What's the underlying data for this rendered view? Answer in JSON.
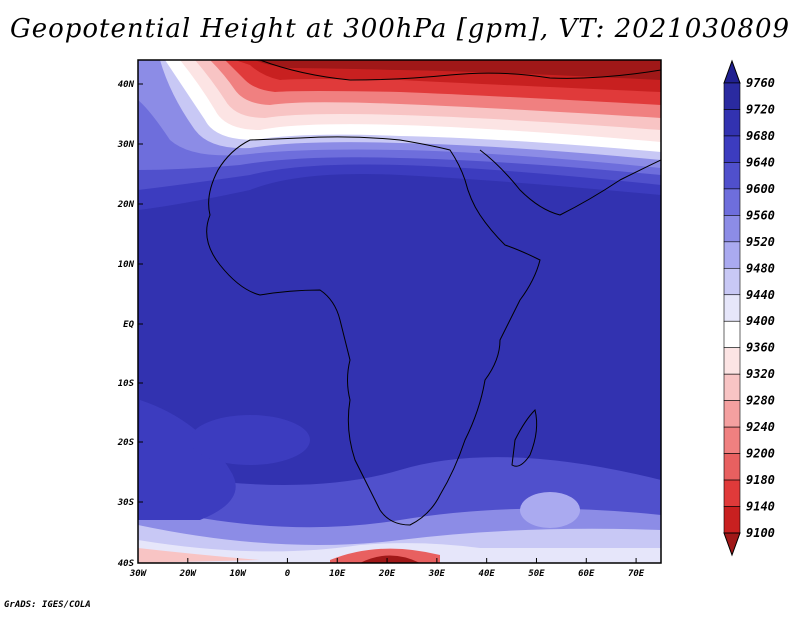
{
  "title": "Geopotential Height at 300hPa [gpm], VT: 2021030809",
  "footer": "GrADS: IGES/COLA",
  "colors": {
    "levels_low_to_high_red": [
      "#a01818",
      "#c82020",
      "#e03a3a",
      "#e86060",
      "#f08080",
      "#f4a0a0",
      "#f8c4c4",
      "#fce4e4"
    ],
    "white": "#ffffff",
    "blues_low_to_high": [
      "#e6e6fa",
      "#c8c8f5",
      "#aaaaf0",
      "#8c8ce6",
      "#6e6edc",
      "#5050cc",
      "#3c3cbf",
      "#3232b0",
      "#2a2aa0",
      "#202090"
    ]
  },
  "axes": {
    "x_ticks": [
      "30W",
      "20W",
      "10W",
      "0",
      "10E",
      "20E",
      "30E",
      "40E",
      "50E",
      "60E",
      "70E"
    ],
    "y_ticks": [
      "40N",
      "30N",
      "20N",
      "10N",
      "EQ",
      "10S",
      "20S",
      "30S",
      "40S"
    ]
  },
  "colorbar": {
    "labels": [
      "9760",
      "9720",
      "9680",
      "9640",
      "9600",
      "9560",
      "9520",
      "9480",
      "9440",
      "9400",
      "9360",
      "9320",
      "9280",
      "9240",
      "9200",
      "9180",
      "9140",
      "9100"
    ]
  }
}
